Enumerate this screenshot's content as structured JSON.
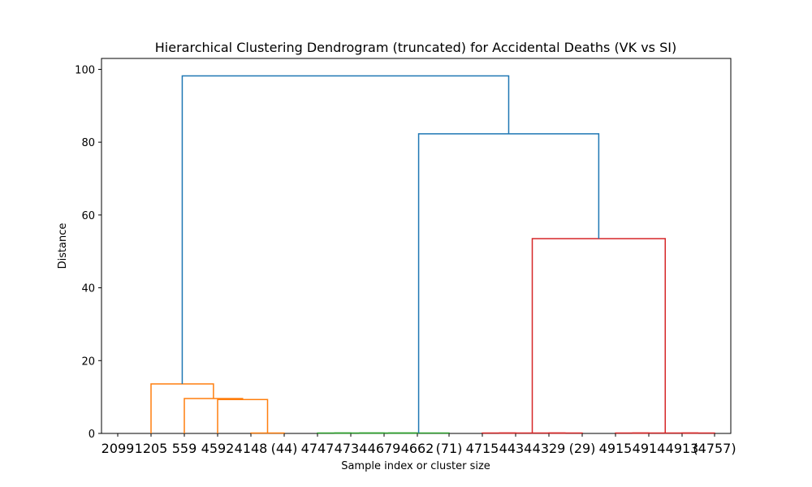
{
  "chart_data": {
    "type": "dendrogram",
    "title": "Hierarchical Clustering Dendrogram (truncated) for Accidental Deaths (VK vs SI)",
    "xlabel": "Sample index or cluster size",
    "ylabel": "Distance",
    "ylim": [
      0,
      103
    ],
    "yticks": [
      0,
      20,
      40,
      60,
      80,
      100
    ],
    "leaf_labels": [
      "2099",
      "1205",
      "559",
      "4592",
      "4148",
      "(44)",
      "4747",
      "4734",
      "4679",
      "4662",
      "(71)",
      "4715",
      "4434",
      "4329",
      "(29)",
      "4915",
      "4914",
      "4913",
      "(4757)"
    ],
    "links": [
      {
        "left": 4,
        "right": 5,
        "height": 0.1,
        "color": "#ff7f0e"
      },
      {
        "left": 3,
        "right": "c0",
        "height": 9.3,
        "color": "#ff7f0e"
      },
      {
        "left": 2,
        "right": "c1",
        "height": 9.6,
        "color": "#ff7f0e"
      },
      {
        "left": 1,
        "right": "c2",
        "height": 13.6,
        "color": "#ff7f0e"
      },
      {
        "left": 6,
        "right": 7,
        "height": 0.1,
        "color": "#2ca02c"
      },
      {
        "left": 8,
        "right": "c4",
        "height": 0.1,
        "color": "#2ca02c"
      },
      {
        "left": 9,
        "right": "c5",
        "height": 0.1,
        "color": "#2ca02c"
      },
      {
        "left": 10,
        "right": "c6",
        "height": 0.1,
        "color": "#2ca02c"
      },
      {
        "left": 11,
        "right": 12,
        "height": 0.1,
        "color": "#d62728"
      },
      {
        "left": 13,
        "right": 14,
        "height": 0.1,
        "color": "#d62728"
      },
      {
        "left": "c8",
        "right": "c9",
        "height": 0.1,
        "color": "#d62728"
      },
      {
        "left": 15,
        "right": 16,
        "height": 0.1,
        "color": "#d62728"
      },
      {
        "left": 17,
        "right": 18,
        "height": 0.1,
        "color": "#d62728"
      },
      {
        "left": "c11",
        "right": "c12",
        "height": 0.1,
        "color": "#d62728"
      },
      {
        "left": "c10",
        "right": "c13",
        "height": 53.5,
        "color": "#d62728"
      },
      {
        "left": "c7",
        "right": "c14",
        "height": 82.3,
        "color": "#1f77b4"
      },
      {
        "left": "c3",
        "right": "c15",
        "height": 98.2,
        "color": "#1f77b4"
      }
    ],
    "grid": false,
    "legend": "none"
  }
}
